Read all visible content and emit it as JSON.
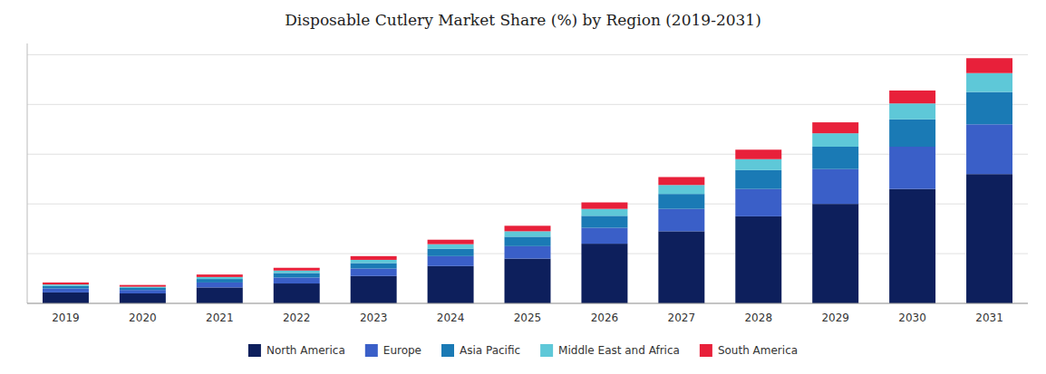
{
  "chart_data": {
    "type": "bar",
    "title": "Disposable Cutlery Market Share (%) by Region (2019-2031)",
    "categories": [
      "2019",
      "2020",
      "2021",
      "2022",
      "2023",
      "2024",
      "2025",
      "2026",
      "2027",
      "2028",
      "2029",
      "2030",
      "2031"
    ],
    "series": [
      {
        "name": "North America",
        "color": "#0d1f5c",
        "values": [
          2.2,
          2.0,
          3.2,
          4.0,
          5.5,
          7.5,
          9.0,
          12.0,
          14.5,
          17.5,
          20.0,
          23.0,
          26.0
        ]
      },
      {
        "name": "Europe",
        "color": "#3a5fc8",
        "values": [
          0.8,
          0.7,
          1.0,
          1.2,
          1.5,
          2.0,
          2.5,
          3.2,
          4.5,
          5.5,
          7.0,
          8.5,
          10.0
        ]
      },
      {
        "name": "Asia Pacific",
        "color": "#1a7ab5",
        "values": [
          0.5,
          0.4,
          0.7,
          0.9,
          1.1,
          1.5,
          1.9,
          2.4,
          3.0,
          3.8,
          4.5,
          5.5,
          6.5
        ]
      },
      {
        "name": "Middle East and Africa",
        "color": "#5ec8d8",
        "values": [
          0.3,
          0.25,
          0.4,
          0.5,
          0.65,
          0.9,
          1.1,
          1.4,
          1.8,
          2.2,
          2.7,
          3.2,
          3.8
        ]
      },
      {
        "name": "South America",
        "color": "#e8203a",
        "values": [
          0.4,
          0.35,
          0.5,
          0.55,
          0.75,
          0.9,
          1.1,
          1.3,
          1.6,
          1.9,
          2.2,
          2.6,
          3.0
        ]
      }
    ],
    "stacked": true,
    "ylim": [
      0,
      52.258
    ],
    "yticks": [
      0,
      10,
      20,
      30,
      40,
      50
    ],
    "grid": true,
    "tick_labels": "x",
    "legend": "bottom"
  }
}
